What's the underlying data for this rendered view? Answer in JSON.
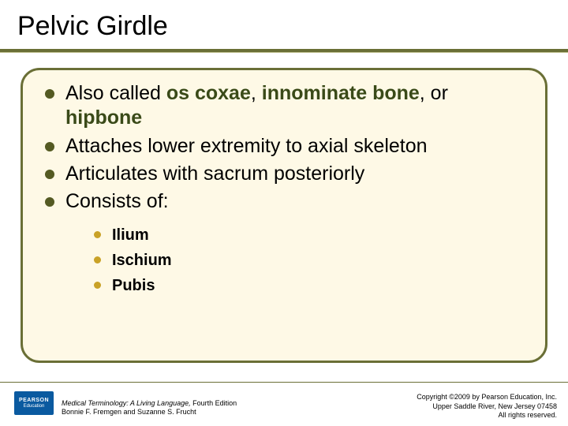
{
  "title": "Pelvic Girdle",
  "colors": {
    "rule": "#6a6f36",
    "frame_border": "#6a6f36",
    "frame_bg": "#fef9e6",
    "bullet1": "#545a22",
    "bullet2": "#c9a227",
    "bold_text": "#3a4a18",
    "logo_bg": "#0a5aa0"
  },
  "bullets": [
    {
      "pre": "Also called ",
      "b1": "os coxae",
      "mid1": ", ",
      "b2": "innominate bone",
      "mid2": ", or ",
      "b3": "hipbone"
    },
    {
      "text": "Attaches lower extremity to axial skeleton"
    },
    {
      "text": "Articulates with sacrum posteriorly"
    },
    {
      "text": "Consists of:"
    }
  ],
  "sub_bullets": [
    "Ilium",
    "Ischium",
    "Pubis"
  ],
  "footer": {
    "logo_top": "PEARSON",
    "logo_bottom": "Education",
    "credit_title": "Medical Terminology: A Living Language,",
    "credit_edition": " Fourth Edition",
    "credit_authors": "Bonnie F. Fremgen and Suzanne S. Frucht",
    "copy1": "Copyright ©2009 by Pearson Education, Inc.",
    "copy2": "Upper Saddle River, New Jersey 07458",
    "copy3": "All rights reserved."
  }
}
